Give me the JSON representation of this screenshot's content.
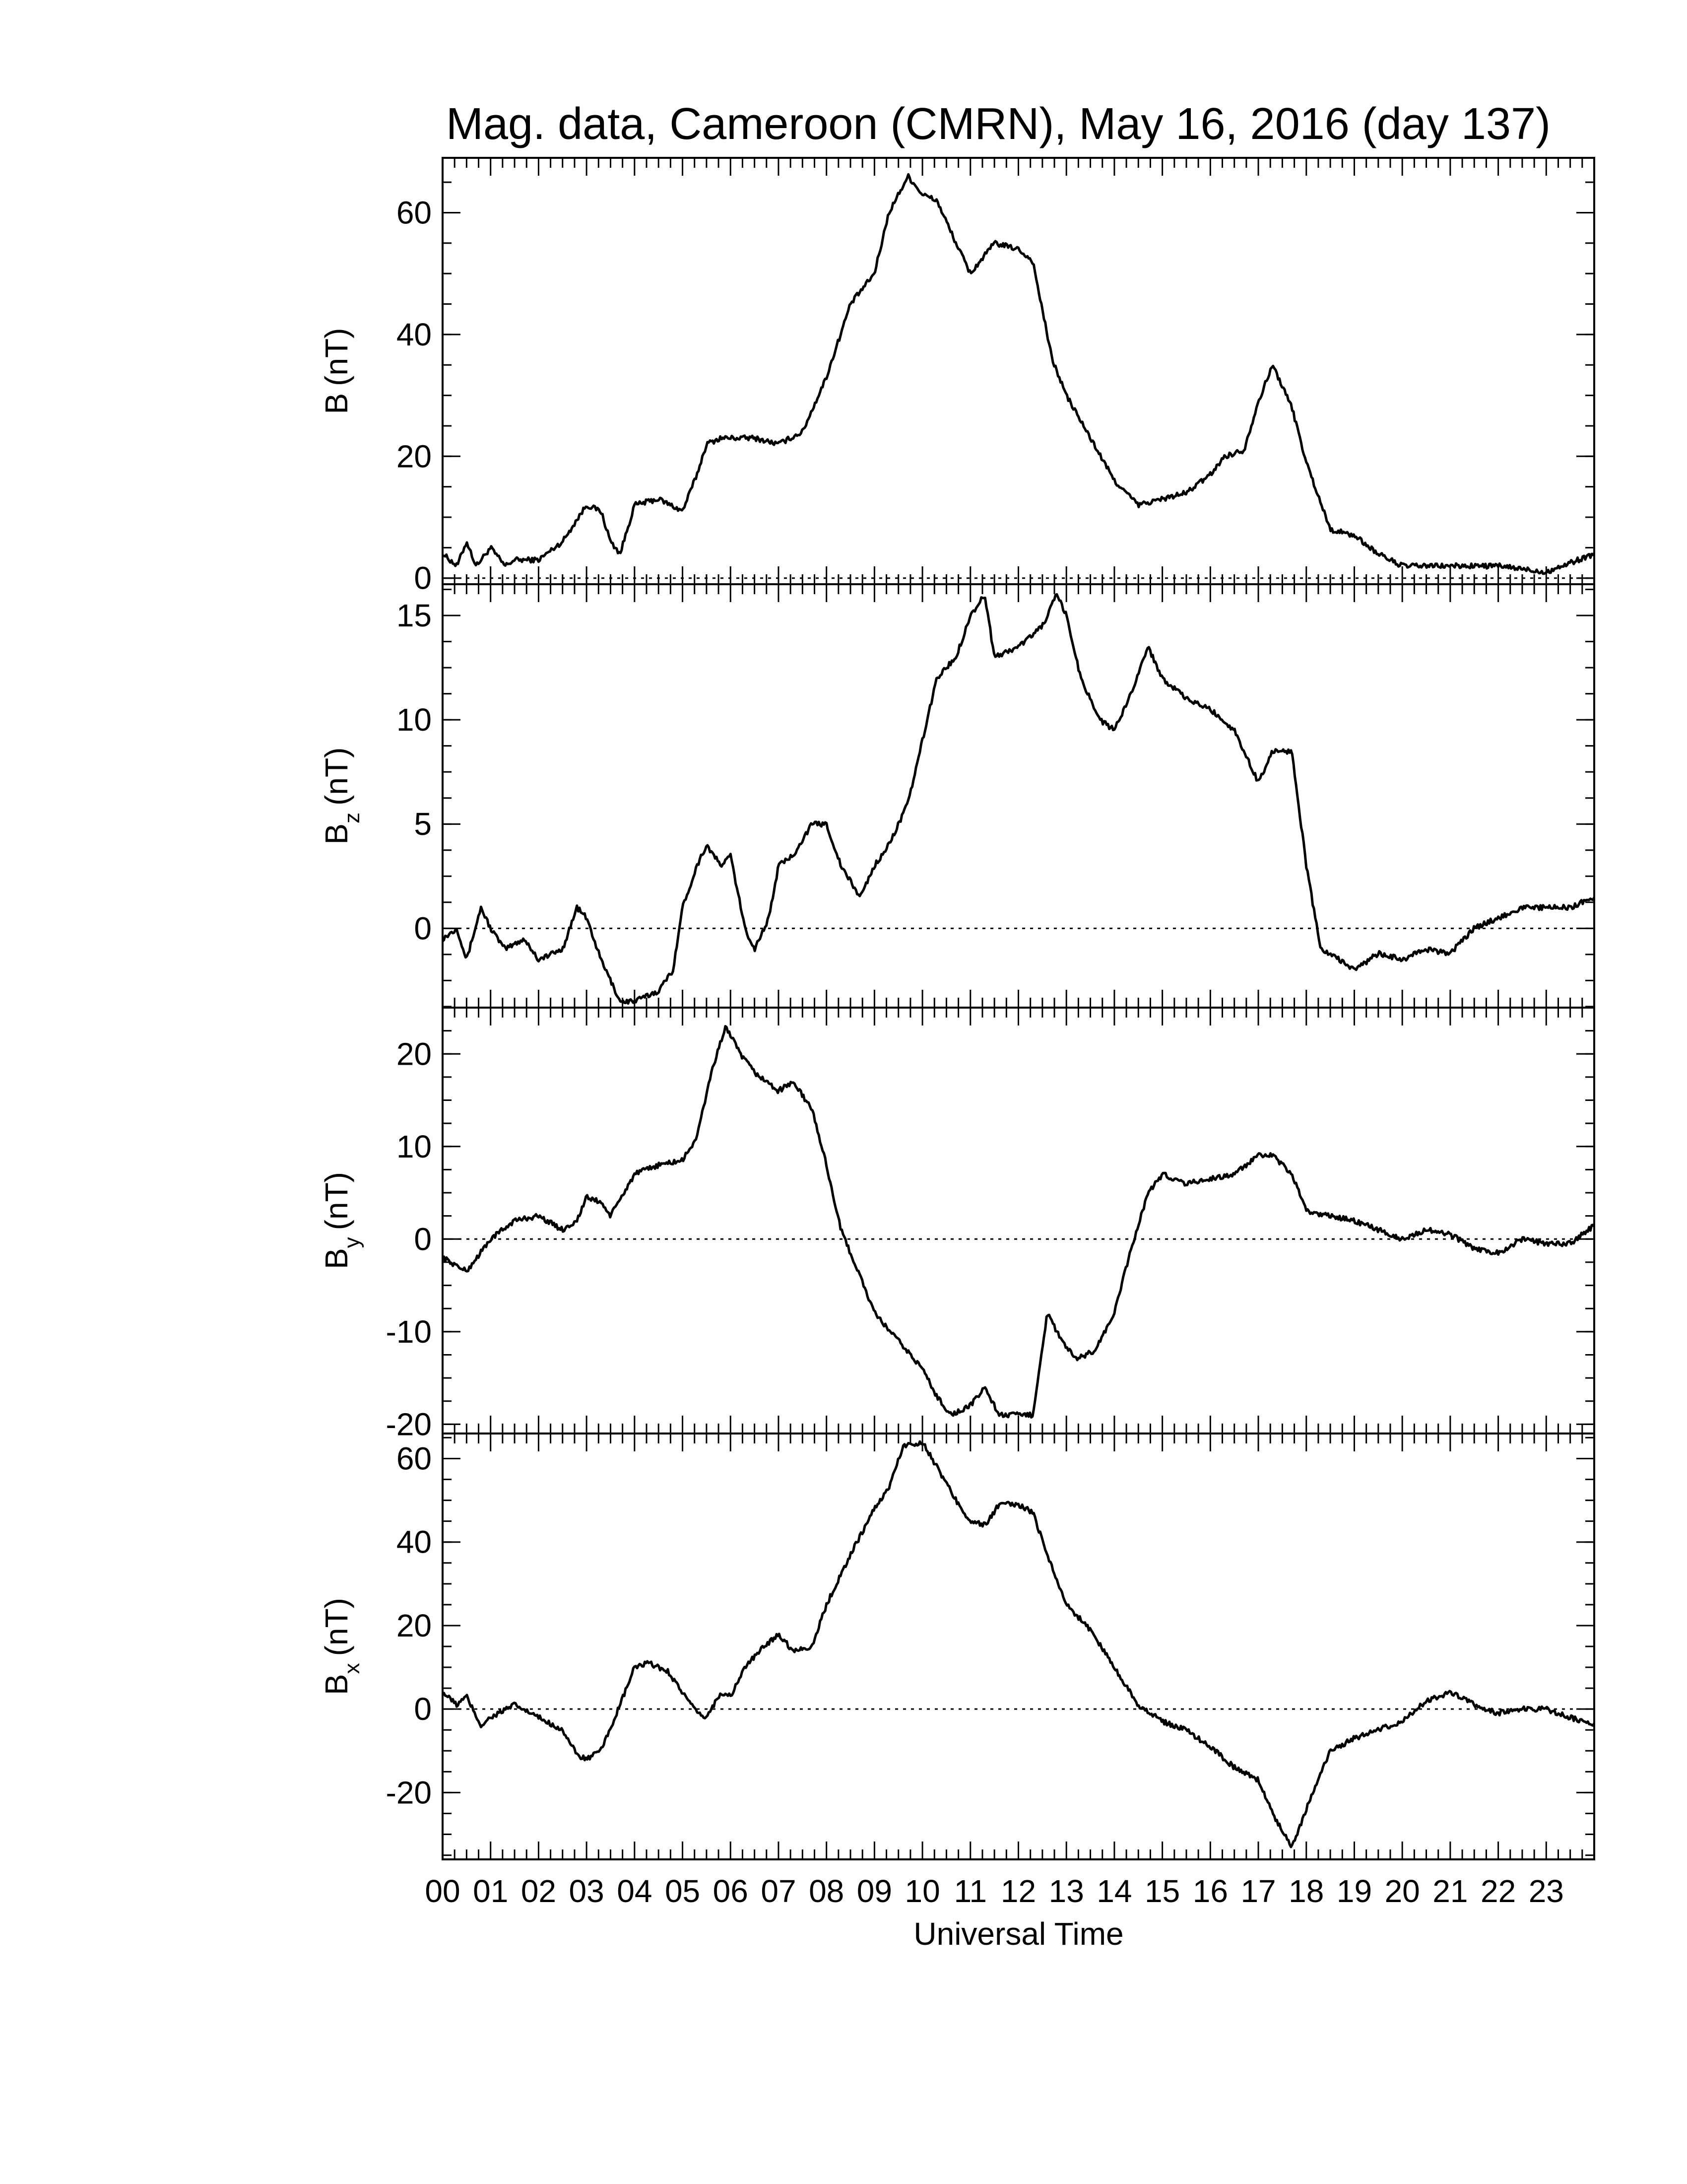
{
  "chart_data": {
    "type": "line",
    "title": "Mag. data, Cameroon (CMRN), May 16, 2016 (day 137)",
    "xlabel": "Universal Time",
    "xlim": [
      0,
      24
    ],
    "x_tick_labels": [
      "00",
      "01",
      "02",
      "03",
      "04",
      "05",
      "06",
      "07",
      "08",
      "09",
      "10",
      "11",
      "12",
      "13",
      "14",
      "15",
      "16",
      "17",
      "18",
      "19",
      "20",
      "21",
      "22",
      "23"
    ],
    "panels": [
      {
        "id": "B",
        "ylabel_main": "B",
        "ylabel_sub": "",
        "ylabel_unit": "(nT)",
        "ylim": [
          -1,
          69
        ],
        "yticks": [
          0,
          20,
          40,
          60
        ],
        "ytick_labels": [
          "0",
          "20",
          "40",
          "60"
        ],
        "zero_line": true,
        "x": [
          0,
          0.3,
          0.5,
          0.7,
          1.0,
          1.3,
          1.5,
          2.0,
          2.5,
          3.0,
          3.3,
          3.5,
          3.7,
          4.0,
          4.5,
          5.0,
          5.3,
          5.5,
          5.8,
          6.0,
          6.5,
          7.0,
          7.5,
          8.0,
          8.5,
          9.0,
          9.3,
          9.7,
          10.0,
          10.3,
          10.7,
          11.0,
          11.5,
          12.0,
          12.3,
          12.7,
          13.0,
          13.5,
          14.0,
          14.5,
          15.0,
          15.5,
          16.0,
          16.3,
          16.7,
          17.0,
          17.3,
          17.7,
          18.0,
          18.5,
          19.0,
          19.5,
          20.0,
          21.0,
          22.0,
          23.0,
          24.0
        ],
        "values": [
          4,
          2,
          6,
          2,
          5,
          2,
          3,
          3,
          6,
          12,
          11,
          6,
          4,
          12,
          13,
          11,
          17,
          22,
          23,
          23,
          23,
          22,
          24,
          33,
          45,
          50,
          60,
          66,
          63,
          62,
          55,
          50,
          55,
          54,
          52,
          36,
          30,
          23,
          16,
          12,
          13,
          14,
          17,
          20,
          21,
          29,
          35,
          28,
          19,
          8,
          7,
          4,
          2,
          2,
          2,
          1,
          4
        ]
      },
      {
        "id": "Bz",
        "ylabel_main": "B",
        "ylabel_sub": "z",
        "ylabel_unit": "(nT)",
        "ylim": [
          -3.8,
          16.5
        ],
        "yticks": [
          0,
          5,
          10,
          15
        ],
        "ytick_labels": [
          "0",
          "5",
          "10",
          "15"
        ],
        "zero_line": true,
        "x": [
          0,
          0.3,
          0.5,
          0.8,
          1.0,
          1.3,
          1.7,
          2.0,
          2.5,
          2.8,
          3.0,
          3.3,
          3.7,
          4.0,
          4.5,
          4.8,
          5.0,
          5.3,
          5.5,
          5.8,
          6.0,
          6.3,
          6.5,
          6.8,
          7.0,
          7.3,
          7.7,
          8.0,
          8.3,
          8.7,
          9.0,
          9.3,
          9.7,
          10.0,
          10.3,
          10.7,
          11.0,
          11.3,
          11.5,
          12.0,
          12.5,
          12.8,
          13.0,
          13.3,
          13.7,
          14.0,
          14.3,
          14.7,
          15.0,
          15.5,
          16.0,
          16.5,
          17.0,
          17.3,
          17.7,
          18.0,
          18.3,
          18.7,
          19.0,
          19.5,
          20.0,
          20.5,
          21.0,
          21.5,
          22.0,
          22.5,
          23.0,
          23.5,
          24.0
        ],
        "values": [
          -0.5,
          0,
          -1.5,
          1,
          0,
          -1,
          -0.5,
          -1.5,
          -1,
          1,
          0.5,
          -1.5,
          -3.5,
          -3.5,
          -3,
          -2,
          1,
          3,
          4,
          3,
          3.5,
          0,
          -1,
          0.5,
          3,
          3.5,
          5,
          5,
          3,
          1.5,
          3,
          4,
          6,
          9,
          12,
          13,
          15,
          16,
          13,
          13.5,
          14.5,
          16,
          15,
          12,
          10,
          9.5,
          11,
          13.5,
          12,
          11,
          10.5,
          9.5,
          7,
          8.5,
          8.5,
          3,
          -1,
          -1.5,
          -2,
          -1.2,
          -1.5,
          -1,
          -1.2,
          0,
          0.5,
          1,
          1,
          1,
          1.5
        ]
      },
      {
        "id": "By",
        "ylabel_main": "B",
        "ylabel_sub": "y",
        "ylabel_unit": "(nT)",
        "ylim": [
          -21,
          25
        ],
        "yticks": [
          -20,
          -10,
          0,
          10,
          20
        ],
        "ytick_labels": [
          "-20",
          "-10",
          "0",
          "10",
          "20"
        ],
        "zero_line": true,
        "x": [
          0,
          0.5,
          1.0,
          1.5,
          2.0,
          2.5,
          2.8,
          3.0,
          3.3,
          3.5,
          4.0,
          4.5,
          5.0,
          5.3,
          5.6,
          5.9,
          6.2,
          6.5,
          7.0,
          7.3,
          7.7,
          8.0,
          8.3,
          8.7,
          9.0,
          9.5,
          10.0,
          10.3,
          10.6,
          11.0,
          11.3,
          11.6,
          12.0,
          12.3,
          12.6,
          12.9,
          13.2,
          13.6,
          14.0,
          14.3,
          14.7,
          15.0,
          15.5,
          16.0,
          16.5,
          17.0,
          17.3,
          17.7,
          18.0,
          18.5,
          19.0,
          19.5,
          20.0,
          20.5,
          21.0,
          21.5,
          22.0,
          22.5,
          23.0,
          23.5,
          24.0
        ],
        "values": [
          -2,
          -3.5,
          0,
          2,
          2.5,
          1,
          2,
          4.5,
          4,
          2.5,
          7,
          8,
          8.5,
          11,
          18,
          23,
          20,
          18,
          16,
          17,
          14,
          8,
          1,
          -4,
          -8,
          -11,
          -14,
          -17,
          -19,
          -18,
          -16,
          -19,
          -19,
          -19,
          -8,
          -11,
          -13,
          -12,
          -8,
          -2,
          5,
          7,
          6,
          6.5,
          7,
          9,
          9,
          7,
          3,
          2.5,
          2,
          1,
          0,
          1,
          0.5,
          -1,
          -1.5,
          0,
          -0.5,
          -0.5,
          1.5
        ]
      },
      {
        "id": "Bx",
        "ylabel_main": "B",
        "ylabel_sub": "x",
        "ylabel_unit": "(nT)",
        "ylim": [
          -36,
          66
        ],
        "yticks": [
          -20,
          0,
          20,
          40,
          60
        ],
        "ytick_labels": [
          "-20",
          "0",
          "20",
          "40",
          "60"
        ],
        "zero_line": true,
        "x": [
          0,
          0.3,
          0.5,
          0.8,
          1.0,
          1.5,
          2.0,
          2.5,
          2.8,
          3.0,
          3.3,
          3.7,
          4.0,
          4.3,
          4.7,
          5.0,
          5.3,
          5.5,
          5.8,
          6.0,
          6.3,
          6.7,
          7.0,
          7.3,
          7.7,
          8.0,
          8.5,
          9.0,
          9.3,
          9.6,
          10.0,
          10.3,
          10.7,
          11.0,
          11.3,
          11.6,
          12.0,
          12.3,
          12.7,
          13.0,
          13.5,
          14.0,
          14.5,
          15.0,
          15.5,
          16.0,
          16.5,
          17.0,
          17.3,
          17.7,
          18.0,
          18.5,
          19.0,
          19.5,
          20.0,
          20.5,
          21.0,
          21.5,
          22.0,
          22.5,
          23.0,
          23.5,
          24.0
        ],
        "values": [
          4,
          1,
          3,
          -4,
          -2,
          1,
          -2,
          -5,
          -11,
          -12,
          -10,
          1,
          10,
          11,
          9,
          4,
          -1,
          -2,
          4,
          3,
          10,
          15,
          18,
          14,
          15,
          25,
          37,
          48,
          53,
          63,
          64,
          58,
          50,
          45,
          44,
          49,
          49,
          47,
          34,
          25,
          19,
          10,
          1,
          -3,
          -5,
          -9,
          -14,
          -17,
          -25,
          -33,
          -24,
          -10,
          -7,
          -5,
          -3,
          2,
          4,
          1,
          -1,
          0,
          0,
          -2,
          -4
        ]
      }
    ]
  }
}
